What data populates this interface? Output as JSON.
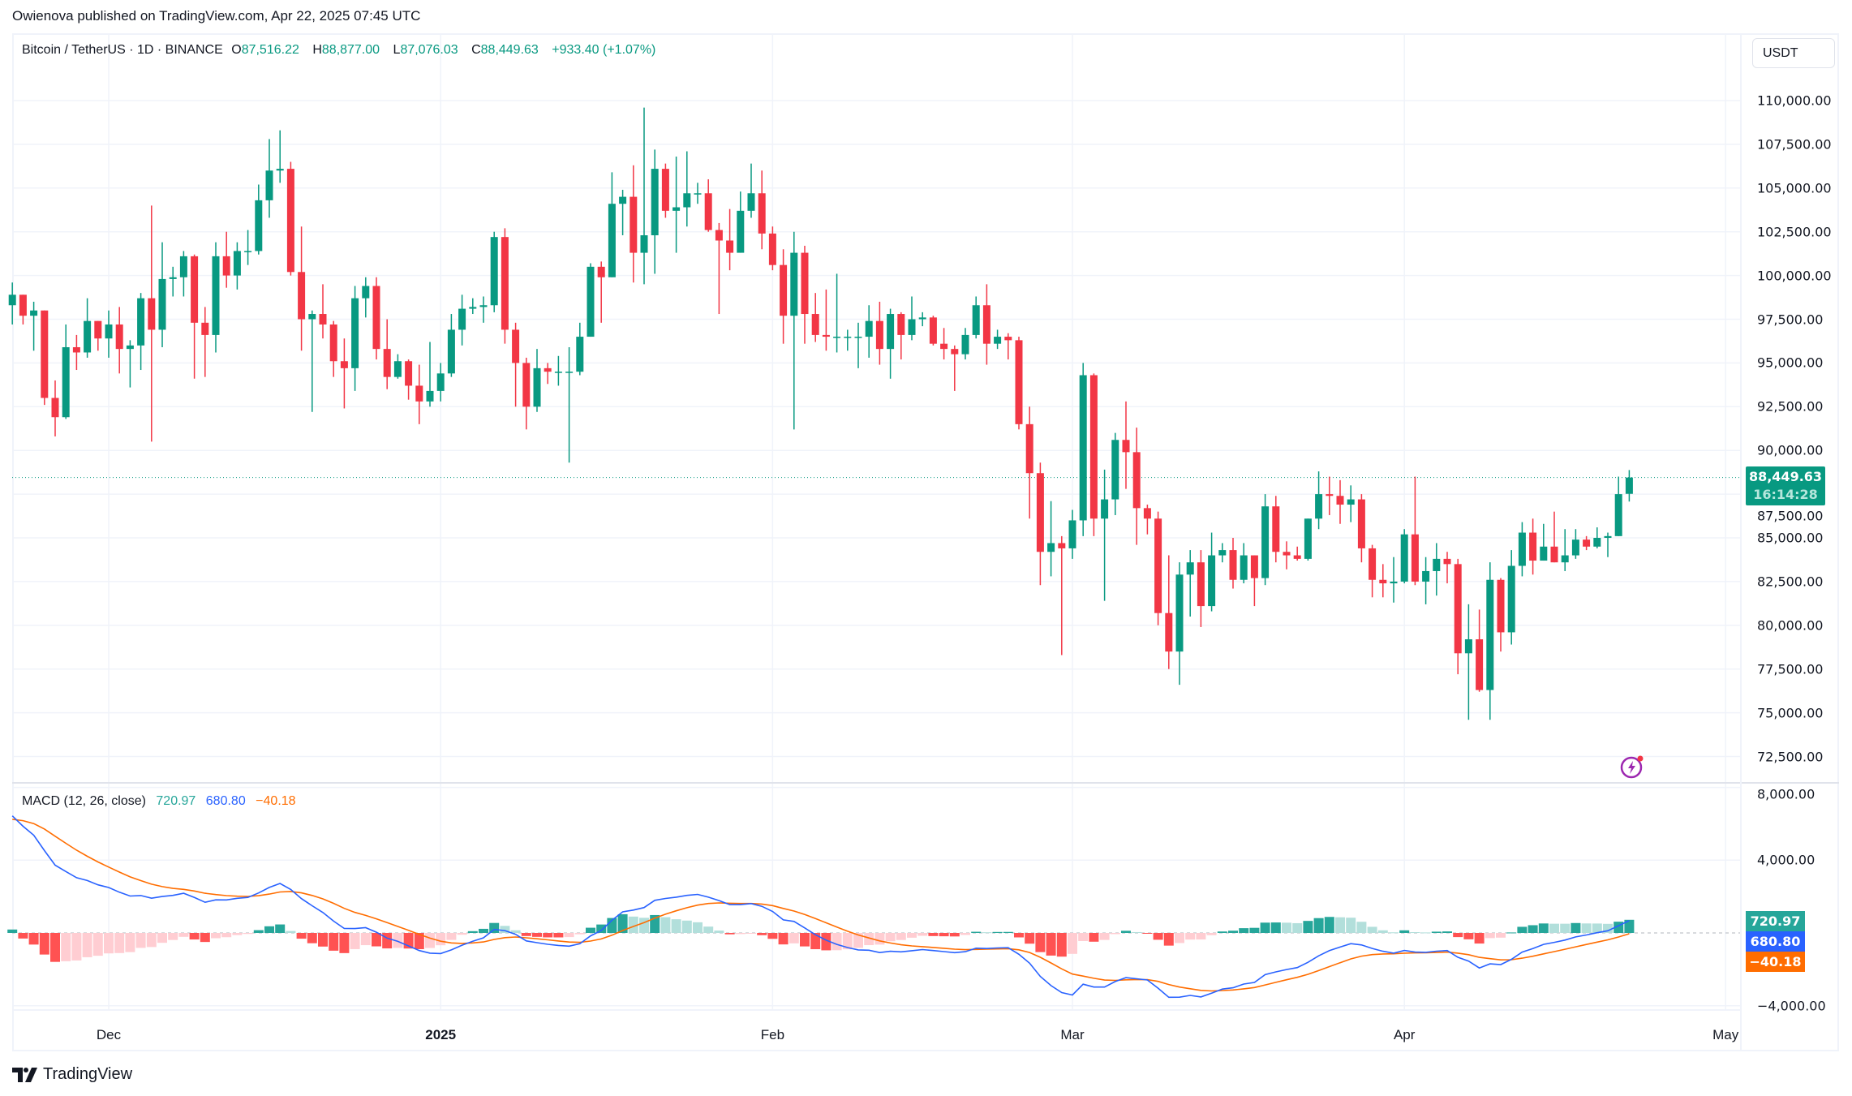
{
  "header": {
    "published": "Owienova published on TradingView.com, Apr 22, 2025 07:45 UTC"
  },
  "legend": {
    "symbol": "Bitcoin / TetherUS · 1D · BINANCE",
    "open_label": "O",
    "open": "87,516.22",
    "high_label": "H",
    "high": "88,877.00",
    "low_label": "L",
    "low": "87,076.03",
    "close_label": "C",
    "close": "88,449.63",
    "change": "+933.40 (+1.07%)"
  },
  "currency_button": "USDT",
  "last_price": {
    "price": "88,449.63",
    "countdown": "16:14:28",
    "value": 88449.63
  },
  "macd": {
    "label": "MACD (12, 26, close)",
    "v1": "720.97",
    "v2": "680.80",
    "v3": "−40.18"
  },
  "branding": {
    "logo_text": "TradingView"
  },
  "colors": {
    "up": "#089981",
    "down": "#f23645",
    "macd": "#2962ff",
    "signal": "#ff6d00",
    "hist_up_strong": "#26a69a",
    "hist_up_weak": "#b2dfdb",
    "hist_down_strong": "#ff5252",
    "hist_down_weak": "#ffcdd2",
    "alert": "#9c27b0"
  },
  "chart_data": {
    "type": "candlestick",
    "title": "Bitcoin / TetherUS · 1D · BINANCE",
    "start_date": "2024-11-22",
    "interval": "1D",
    "price_ticks": [
      "110,000.00",
      "107,500.00",
      "105,000.00",
      "102,500.00",
      "100,000.00",
      "97,500.00",
      "95,000.00",
      "92,500.00",
      "90,000.00",
      "87,500.00",
      "85,000.00",
      "82,500.00",
      "80,000.00",
      "77,500.00",
      "75,000.00",
      "72,500.00"
    ],
    "price_range": [
      72500,
      110000
    ],
    "macd_ticks": [
      "8,000.00",
      "4,000.00",
      "−4,000.00"
    ],
    "macd_range": [
      -4000,
      8000
    ],
    "time_ticks": [
      {
        "label": "Dec",
        "date": "2024-12-01"
      },
      {
        "label": "2025",
        "date": "2025-01-01"
      },
      {
        "label": "Feb",
        "date": "2025-02-01"
      },
      {
        "label": "Mar",
        "date": "2025-03-01"
      },
      {
        "label": "Apr",
        "date": "2025-04-01"
      },
      {
        "label": "May",
        "date": "2025-05-01"
      }
    ],
    "ohlc": [
      [
        98300,
        99600,
        97200,
        98900
      ],
      [
        98900,
        98900,
        97200,
        97700
      ],
      [
        97700,
        98500,
        95700,
        98000
      ],
      [
        98000,
        98000,
        92600,
        93000
      ],
      [
        93000,
        94000,
        90800,
        91900
      ],
      [
        91900,
        97200,
        91800,
        95900
      ],
      [
        95900,
        96600,
        94600,
        95600
      ],
      [
        95600,
        98700,
        95300,
        97400
      ],
      [
        97400,
        97400,
        95700,
        96400
      ],
      [
        96400,
        98000,
        95300,
        97200
      ],
      [
        97200,
        98200,
        94400,
        95800
      ],
      [
        95800,
        96300,
        93600,
        96000
      ],
      [
        96000,
        99000,
        94600,
        98700
      ],
      [
        98700,
        104000,
        90500,
        96900
      ],
      [
        96900,
        101900,
        95900,
        99800
      ],
      [
        99800,
        100500,
        98800,
        99900
      ],
      [
        99900,
        101400,
        98800,
        101100
      ],
      [
        101100,
        101200,
        94100,
        97300
      ],
      [
        97300,
        98200,
        94200,
        96600
      ],
      [
        96600,
        101900,
        95600,
        101100
      ],
      [
        101100,
        102500,
        99300,
        100000
      ],
      [
        100000,
        101900,
        99200,
        101400
      ],
      [
        101400,
        102600,
        100600,
        101400
      ],
      [
        101400,
        105200,
        101200,
        104300
      ],
      [
        104300,
        107800,
        103300,
        106000
      ],
      [
        106000,
        108300,
        105300,
        106100
      ],
      [
        106100,
        106500,
        100000,
        100200
      ],
      [
        100200,
        102800,
        95700,
        97500
      ],
      [
        97500,
        98000,
        92200,
        97800
      ],
      [
        97800,
        99500,
        96400,
        97200
      ],
      [
        97200,
        97400,
        94200,
        95100
      ],
      [
        95100,
        96400,
        92400,
        94700
      ],
      [
        94700,
        99400,
        93400,
        98700
      ],
      [
        98700,
        99900,
        97600,
        99400
      ],
      [
        99400,
        99900,
        95200,
        95800
      ],
      [
        95800,
        97500,
        93500,
        94200
      ],
      [
        94200,
        95500,
        94100,
        95100
      ],
      [
        95100,
        95200,
        92900,
        93700
      ],
      [
        93700,
        94900,
        91500,
        92800
      ],
      [
        92800,
        96200,
        92500,
        93400
      ],
      [
        93400,
        95000,
        92800,
        94400
      ],
      [
        94400,
        97800,
        94200,
        96900
      ],
      [
        96900,
        98900,
        96000,
        98100
      ],
      [
        98100,
        98700,
        97800,
        98200
      ],
      [
        98200,
        98800,
        97300,
        98300
      ],
      [
        98300,
        102500,
        97900,
        102200
      ],
      [
        102200,
        102700,
        96100,
        96900
      ],
      [
        96900,
        97300,
        92500,
        95000
      ],
      [
        95000,
        95300,
        91200,
        92500
      ],
      [
        92500,
        95800,
        92200,
        94700
      ],
      [
        94700,
        95000,
        93800,
        94500
      ],
      [
        94500,
        95400,
        93700,
        94500
      ],
      [
        94500,
        95900,
        89300,
        94500
      ],
      [
        94500,
        97300,
        94300,
        96500
      ],
      [
        96500,
        100700,
        96500,
        100500
      ],
      [
        100500,
        100800,
        97300,
        99900
      ],
      [
        99900,
        105900,
        99900,
        104100
      ],
      [
        104100,
        104900,
        102300,
        104500
      ],
      [
        104500,
        106300,
        99600,
        101300
      ],
      [
        101300,
        109600,
        99500,
        102300
      ],
      [
        102300,
        107200,
        100100,
        106100
      ],
      [
        106100,
        106400,
        103300,
        103700
      ],
      [
        103700,
        106800,
        101300,
        103900
      ],
      [
        103900,
        107100,
        102800,
        104700
      ],
      [
        104700,
        105300,
        104100,
        104700
      ],
      [
        104700,
        105500,
        102500,
        102600
      ],
      [
        102600,
        103000,
        97800,
        102000
      ],
      [
        102000,
        103800,
        100300,
        101300
      ],
      [
        101300,
        104800,
        101300,
        103700
      ],
      [
        103700,
        106400,
        103300,
        104700
      ],
      [
        104700,
        106000,
        101500,
        102400
      ],
      [
        102400,
        102800,
        100300,
        100600
      ],
      [
        100600,
        101500,
        96100,
        97700
      ],
      [
        97700,
        102500,
        91200,
        101300
      ],
      [
        101300,
        101700,
        96100,
        97800
      ],
      [
        97800,
        99000,
        96200,
        96600
      ],
      [
        96600,
        99200,
        95700,
        96500
      ],
      [
        96500,
        100100,
        95600,
        96500
      ],
      [
        96500,
        96900,
        95700,
        96500
      ],
      [
        96500,
        97300,
        94700,
        96500
      ],
      [
        96500,
        98300,
        95300,
        97400
      ],
      [
        97400,
        98500,
        94900,
        95800
      ],
      [
        95800,
        98100,
        94100,
        97800
      ],
      [
        97800,
        97900,
        95200,
        96600
      ],
      [
        96600,
        98800,
        96300,
        97500
      ],
      [
        97500,
        97900,
        97100,
        97600
      ],
      [
        97600,
        97700,
        96000,
        96100
      ],
      [
        96100,
        97000,
        95200,
        95800
      ],
      [
        95800,
        96000,
        93400,
        95500
      ],
      [
        95500,
        97000,
        95200,
        96600
      ],
      [
        96600,
        98800,
        96400,
        98300
      ],
      [
        98300,
        99500,
        94900,
        96100
      ],
      [
        96100,
        96900,
        95800,
        96500
      ],
      [
        96500,
        96700,
        95200,
        96300
      ],
      [
        96300,
        96500,
        91200,
        91500
      ],
      [
        91500,
        92500,
        86100,
        88700
      ],
      [
        88700,
        89300,
        82300,
        84200
      ],
      [
        84200,
        87100,
        82800,
        84700
      ],
      [
        84700,
        85100,
        78300,
        84400
      ],
      [
        84400,
        86600,
        83800,
        86000
      ],
      [
        86000,
        95000,
        85100,
        94300
      ],
      [
        94300,
        94400,
        85100,
        86100
      ],
      [
        86100,
        88900,
        81400,
        87200
      ],
      [
        87200,
        91000,
        86300,
        90600
      ],
      [
        90600,
        92800,
        87800,
        89900
      ],
      [
        89900,
        91300,
        84600,
        86700
      ],
      [
        86700,
        86900,
        85200,
        86100
      ],
      [
        86100,
        86500,
        80000,
        80700
      ],
      [
        80700,
        84000,
        77500,
        78500
      ],
      [
        78500,
        83600,
        76600,
        82900
      ],
      [
        82900,
        84300,
        80500,
        83600
      ],
      [
        83600,
        84300,
        79900,
        81100
      ],
      [
        81100,
        85300,
        80800,
        84000
      ],
      [
        84000,
        84700,
        83600,
        84300
      ],
      [
        84300,
        85000,
        82100,
        82600
      ],
      [
        82600,
        84700,
        82400,
        84000
      ],
      [
        84000,
        84000,
        81100,
        82700
      ],
      [
        82700,
        87500,
        82300,
        86800
      ],
      [
        86800,
        87400,
        83600,
        84200
      ],
      [
        84200,
        84800,
        83200,
        84000
      ],
      [
        84000,
        84500,
        83700,
        83800
      ],
      [
        83800,
        86100,
        83700,
        86100
      ],
      [
        86100,
        88800,
        85500,
        87500
      ],
      [
        87500,
        88500,
        86300,
        87400
      ],
      [
        87400,
        88300,
        85800,
        86900
      ],
      [
        86900,
        88000,
        85900,
        87200
      ],
      [
        87200,
        87500,
        83600,
        84400
      ],
      [
        84400,
        84600,
        81600,
        82600
      ],
      [
        82600,
        83500,
        81600,
        82400
      ],
      [
        82400,
        83900,
        81300,
        82500
      ],
      [
        82500,
        85500,
        82400,
        85200
      ],
      [
        85200,
        88500,
        82300,
        82500
      ],
      [
        82500,
        83900,
        81200,
        83100
      ],
      [
        83100,
        84700,
        81700,
        83800
      ],
      [
        83800,
        84200,
        82400,
        83500
      ],
      [
        83500,
        83800,
        77200,
        78400
      ],
      [
        78400,
        81200,
        74600,
        79200
      ],
      [
        79200,
        80900,
        76200,
        76300
      ],
      [
        76300,
        83600,
        74600,
        82600
      ],
      [
        82600,
        82700,
        78500,
        79600
      ],
      [
        79600,
        84300,
        78900,
        83400
      ],
      [
        83400,
        85900,
        82800,
        85300
      ],
      [
        85300,
        86100,
        82900,
        83700
      ],
      [
        83700,
        85800,
        83700,
        84500
      ],
      [
        84500,
        86500,
        83600,
        83600
      ],
      [
        83600,
        85500,
        83100,
        84000
      ],
      [
        84000,
        85500,
        83800,
        84900
      ],
      [
        84900,
        85100,
        84300,
        84500
      ],
      [
        84500,
        85600,
        84400,
        85000
      ],
      [
        85000,
        85300,
        83900,
        85100
      ],
      [
        85100,
        88500,
        85100,
        87500
      ],
      [
        87516.22,
        88877,
        87076.03,
        88449.63
      ]
    ]
  }
}
